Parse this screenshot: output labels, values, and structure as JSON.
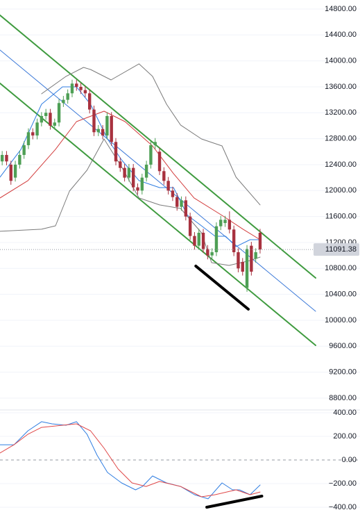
{
  "chart_data": [
    {
      "type": "candlestick",
      "xlim": [
        -0.5,
        71.7
      ],
      "ylim": [
        8639,
        14939
      ],
      "yticks": [
        {
          "value": 14800,
          "label": "14800.00"
        },
        {
          "value": 14400,
          "label": "14400.00"
        },
        {
          "value": 14000,
          "label": "14000.00"
        },
        {
          "value": 13600,
          "label": "13600.00"
        },
        {
          "value": 13200,
          "label": "13200.00"
        },
        {
          "value": 12800,
          "label": "12800.00"
        },
        {
          "value": 12400,
          "label": "12400.00"
        },
        {
          "value": 12000,
          "label": "12000.00"
        },
        {
          "value": 11600,
          "label": "11600.00"
        },
        {
          "value": 11200,
          "label": "11200.00"
        },
        {
          "value": 10800,
          "label": "10800.00"
        },
        {
          "value": 10400,
          "label": "10400.00"
        },
        {
          "value": 10000,
          "label": "10000.00"
        },
        {
          "value": 9600,
          "label": "9600.00"
        },
        {
          "value": 9200,
          "label": "9200.00"
        },
        {
          "value": 8800,
          "label": "8800.00"
        }
      ],
      "grid": true,
      "up_color": "#4e9f55",
      "down_color": "#a8323f",
      "candles": {
        "open": [
          12450,
          12550,
          12400,
          12200,
          12400,
          12550,
          12700,
          12900,
          12850,
          13050,
          13150,
          13200,
          13000,
          13050,
          13350,
          13400,
          13500,
          13650,
          13600,
          13550,
          13500,
          13250,
          12900,
          12950,
          12850,
          13150,
          12750,
          12450,
          12350,
          12200,
          12350,
          12050,
          12000,
          12200,
          12400,
          12700,
          12600,
          12300,
          12150,
          12000,
          11900,
          11750,
          11850,
          11600,
          11300,
          11150,
          11350,
          11100,
          11000,
          11050,
          11450,
          11500,
          11550,
          11400,
          11050,
          10900,
          10500,
          11150,
          10950,
          11350
        ],
        "high": [
          12610,
          12610,
          12460,
          12460,
          12610,
          12760,
          12960,
          12960,
          13110,
          13210,
          13260,
          13260,
          13110,
          13410,
          13460,
          13560,
          13710,
          13710,
          13660,
          13610,
          13560,
          13310,
          13010,
          13010,
          13210,
          13210,
          12810,
          12510,
          12410,
          12410,
          12410,
          12110,
          12260,
          12460,
          12760,
          12810,
          12660,
          12360,
          12210,
          12060,
          11960,
          11910,
          11910,
          11660,
          11360,
          11410,
          11410,
          11160,
          11110,
          11510,
          11610,
          11610,
          11680,
          11460,
          11110,
          10960,
          11160,
          11210,
          11110,
          11410
        ],
        "low": [
          12390,
          12390,
          12090,
          12140,
          12340,
          12490,
          12640,
          12790,
          12790,
          12990,
          13090,
          12940,
          12940,
          12990,
          13290,
          13340,
          13440,
          13540,
          13490,
          13440,
          13190,
          12840,
          12840,
          12790,
          12790,
          12690,
          12390,
          12290,
          12140,
          12140,
          11990,
          11940,
          11940,
          12140,
          12340,
          12640,
          12240,
          12090,
          11940,
          11840,
          11690,
          11690,
          11540,
          11240,
          11090,
          11090,
          11040,
          10940,
          10940,
          10990,
          11390,
          11440,
          11340,
          10990,
          10740,
          10690,
          10440,
          10690,
          10890,
          11030
        ],
        "close": [
          12550,
          12450,
          12150,
          12400,
          12550,
          12700,
          12900,
          12850,
          13050,
          13150,
          13200,
          13000,
          13050,
          13350,
          13400,
          13500,
          13650,
          13600,
          13550,
          13500,
          13250,
          12900,
          12950,
          12850,
          13150,
          12750,
          12450,
          12350,
          12200,
          12350,
          12050,
          12000,
          12200,
          12400,
          12700,
          12750,
          12300,
          12150,
          12000,
          11900,
          11750,
          11850,
          11600,
          11300,
          11150,
          11350,
          11100,
          11000,
          11050,
          11450,
          11550,
          11550,
          11400,
          11050,
          10800,
          10750,
          11100,
          10750,
          11050,
          11091.38
        ]
      },
      "series": [
        {
          "color": "#3f9b3f",
          "width": 2,
          "x": [
            -0.5,
            71.7
          ],
          "values": [
            14704,
            10653
          ]
        },
        {
          "color": "#3f9b3f",
          "width": 2,
          "x": [
            -0.5,
            71.7
          ],
          "values": [
            13654,
            9614
          ]
        },
        {
          "color": "#3a78d8",
          "width": 1,
          "x": [
            -0.5,
            71.7
          ],
          "values": [
            14168,
            10139
          ]
        },
        {
          "color": "#7a7a7a",
          "width": 1,
          "x": [
            9.0,
            14.6,
            18.6,
            20.2,
            24.9,
            31.3,
            34.4,
            37.6,
            40.8,
            45.6,
            50.3,
            53.5,
            59.0
          ],
          "values": [
            13493,
            13761,
            13900,
            13868,
            13707,
            13954,
            13761,
            13332,
            13011,
            12796,
            12689,
            12207,
            11779
          ]
        },
        {
          "color": "#7a7a7a",
          "width": 1,
          "x": [
            -0.5,
            9.0,
            12.2,
            15.4,
            19.4,
            23.3,
            27.3,
            31.3,
            36.0,
            40.8,
            45.6,
            47.9,
            51.9,
            56.7,
            59.0
          ],
          "values": [
            11372,
            11404,
            11457,
            11993,
            12314,
            12796,
            12368,
            11886,
            11779,
            11725,
            11350,
            10889,
            10846,
            10921,
            10975
          ]
        },
        {
          "color": "#d23c3c",
          "width": 1,
          "x": [
            -0.5,
            5.9,
            12.2,
            17.0,
            23.3,
            28.1,
            34.4,
            39.2,
            43.9,
            50.3,
            55.1,
            59.0
          ],
          "values": [
            11886,
            12154,
            12636,
            13064,
            13225,
            13064,
            12689,
            12261,
            11886,
            11618,
            11404,
            11243
          ]
        },
        {
          "color": "#2f7de1",
          "width": 1,
          "x": [
            -0.5,
            4.3,
            9.0,
            13.8,
            17.0,
            20.2,
            24.1,
            27.3,
            31.3,
            36.0,
            39.2,
            42.4,
            45.6,
            48.7,
            51.1,
            53.5,
            56.7,
            59.0
          ],
          "values": [
            12207,
            12636,
            13332,
            13600,
            13600,
            13332,
            12796,
            12475,
            12154,
            12046,
            12046,
            11618,
            11457,
            11296,
            11296,
            11136,
            11243,
            11243
          ]
        },
        {
          "color": "#000000",
          "width": 4,
          "x": [
            44.3,
            56.3
          ],
          "values": [
            10836,
            10171
          ]
        }
      ]
    },
    {
      "type": "line",
      "xlim": [
        -0.5,
        71.7
      ],
      "ylim": [
        -423.5,
        423.5
      ],
      "yticks": [
        {
          "value": 400,
          "label": "400.00"
        },
        {
          "value": 200,
          "label": "200.00"
        },
        {
          "value": 0,
          "label": "0.00"
        },
        {
          "value": -200,
          "label": "−200.00"
        },
        {
          "value": -400,
          "label": "−400.00"
        }
      ],
      "grid": true,
      "series": [
        {
          "color": "#2f7de1",
          "width": 1,
          "x": [
            -0.5,
            2.7,
            5.9,
            9.0,
            11.4,
            14.6,
            17.0,
            19.4,
            21.7,
            24.1,
            27.3,
            30.5,
            32.1,
            34.4,
            37.6,
            40.8,
            44.0,
            47.1,
            50.3,
            52.7,
            54.3,
            56.7,
            59.0
          ],
          "values": [
            129,
            129,
            247,
            324,
            306,
            294,
            324,
            218,
            41,
            -106,
            -194,
            -253,
            -224,
            -135,
            -194,
            -224,
            -294,
            -329,
            -194,
            -253,
            -253,
            -294,
            -212
          ]
        },
        {
          "color": "#e04848",
          "width": 1,
          "x": [
            -0.5,
            2.7,
            5.9,
            9.0,
            13.8,
            17.0,
            20.2,
            23.3,
            26.5,
            29.7,
            32.9,
            36.0,
            40.8,
            45.6,
            48.7,
            53.5,
            56.7,
            59.0
          ],
          "values": [
            59,
            129,
            218,
            276,
            294,
            306,
            247,
            100,
            -76,
            -194,
            -224,
            -182,
            -224,
            -312,
            -294,
            -253,
            -294,
            -271
          ]
        },
        {
          "color": "#000000",
          "width": 4,
          "x": [
            46.8,
            59.4
          ],
          "values": [
            -400,
            -306
          ]
        }
      ]
    }
  ]
}
